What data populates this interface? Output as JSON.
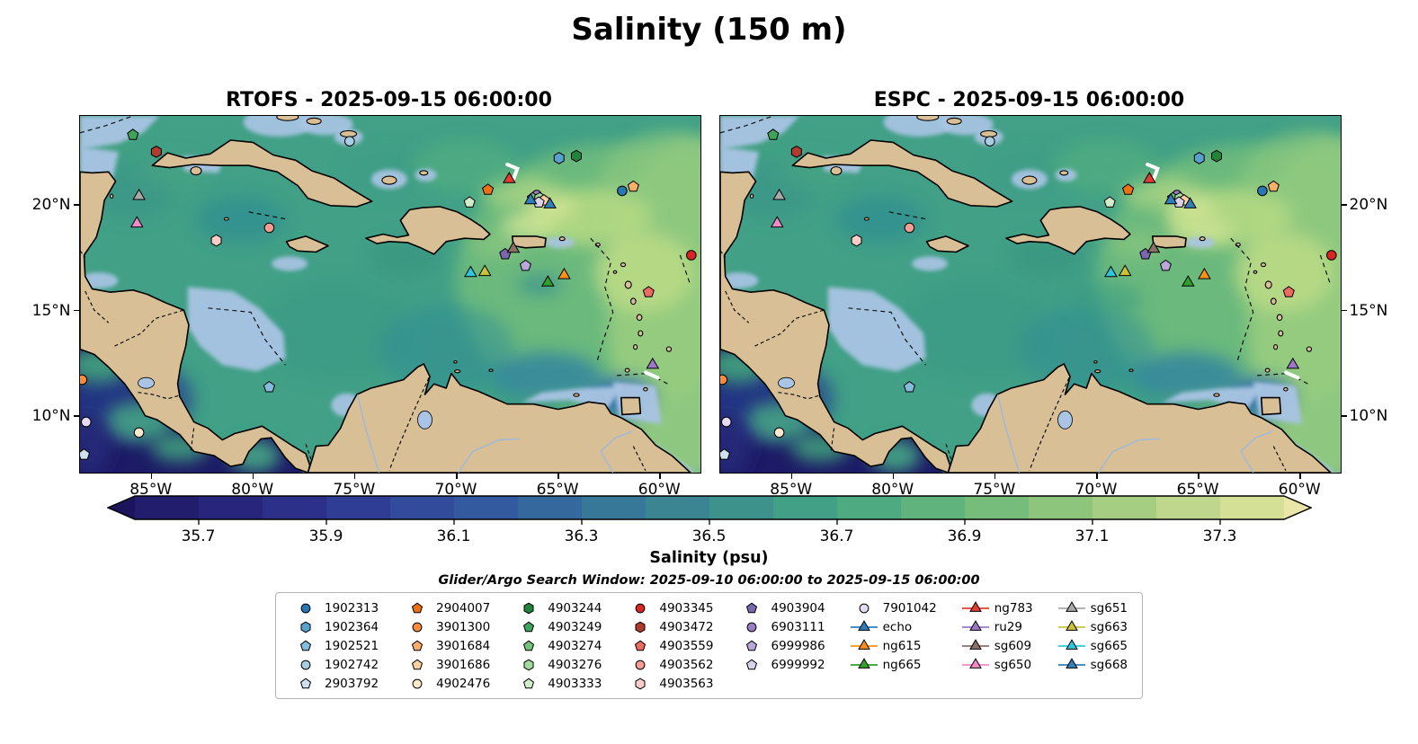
{
  "title": "Salinity (150 m)",
  "map_colors": {
    "land": "#d8bf96",
    "coastline": "#000000",
    "shallow": "#a9c4e4",
    "pacific_deep": "#1d1b66",
    "ocean_base": "#41a086",
    "river": "#9db8dd"
  },
  "chart_data": {
    "type": "heatmap",
    "subtype": "two-panel geographic salinity field at 150 m over the Caribbean Sea with Argo float and glider positions",
    "panels": [
      {
        "id": "rtofs",
        "title": "RTOFS - 2025-09-15 06:00:00"
      },
      {
        "id": "espc",
        "title": "ESPC - 2025-09-15 06:00:00"
      }
    ],
    "lon_range": [
      -88.5,
      -58.0
    ],
    "lat_range": [
      7.3,
      24.2
    ],
    "x_ticks": [
      {
        "label": "85°W",
        "lon": -85
      },
      {
        "label": "80°W",
        "lon": -80
      },
      {
        "label": "75°W",
        "lon": -75
      },
      {
        "label": "70°W",
        "lon": -70
      },
      {
        "label": "65°W",
        "lon": -65
      },
      {
        "label": "60°W",
        "lon": -60
      }
    ],
    "y_ticks": [
      {
        "label": "20°N",
        "lat": 20
      },
      {
        "label": "15°N",
        "lat": 15
      },
      {
        "label": "10°N",
        "lat": 10
      }
    ],
    "colorbar": {
      "label": "Salinity (psu)",
      "range": [
        35.6,
        37.4
      ],
      "tick_values": [
        35.7,
        35.9,
        36.1,
        36.3,
        36.5,
        36.7,
        36.9,
        37.1,
        37.3
      ],
      "tick_labels": [
        "35.7",
        "35.9",
        "36.1",
        "36.3",
        "36.5",
        "36.7",
        "36.9",
        "37.1",
        "37.3"
      ],
      "under_color": "#1c155e",
      "over_color": "#e9e6a8",
      "segment_colors": [
        "#231d6e",
        "#28267c",
        "#2c3089",
        "#2f3d94",
        "#324b9b",
        "#33599e",
        "#35689c",
        "#377797",
        "#3a8591",
        "#3d928b",
        "#42a086",
        "#4eaa80",
        "#60b37c",
        "#76bc7b",
        "#8ec57d",
        "#a6ce83",
        "#bed78c",
        "#d5e097"
      ]
    },
    "search_window_label": "Glider/Argo Search Window: 2025-09-10 06:00:00 to 2025-09-15 06:00:00",
    "legend_columns": [
      [
        {
          "id": "1902313",
          "marker": "circle",
          "color": "#2777b4",
          "type": "float"
        },
        {
          "id": "1902364",
          "marker": "hexagon",
          "color": "#58a1cf",
          "type": "float"
        },
        {
          "id": "1902521",
          "marker": "pentagon",
          "color": "#85bcdb",
          "type": "float"
        },
        {
          "id": "1902742",
          "marker": "circle",
          "color": "#a8cee3",
          "type": "float"
        },
        {
          "id": "2903792",
          "marker": "pentagon",
          "color": "#cfe1f0",
          "type": "float"
        }
      ],
      [
        {
          "id": "2904007",
          "marker": "pentagon",
          "color": "#ed7014",
          "type": "float"
        },
        {
          "id": "3901300",
          "marker": "circle",
          "color": "#fd8c3c",
          "type": "float"
        },
        {
          "id": "3901684",
          "marker": "pentagon",
          "color": "#fdae6b",
          "type": "float"
        },
        {
          "id": "3901686",
          "marker": "pentagon",
          "color": "#fdd0a2",
          "type": "float"
        },
        {
          "id": "4902476",
          "marker": "circle",
          "color": "#fde8cf",
          "type": "float"
        }
      ],
      [
        {
          "id": "4903244",
          "marker": "hexagon",
          "color": "#23823b",
          "type": "float"
        },
        {
          "id": "4903249",
          "marker": "pentagon",
          "color": "#3fa35a",
          "type": "float"
        },
        {
          "id": "4903274",
          "marker": "pentagon",
          "color": "#73c378",
          "type": "float"
        },
        {
          "id": "4903276",
          "marker": "hexagon",
          "color": "#a2d99e",
          "type": "float"
        },
        {
          "id": "4903333",
          "marker": "pentagon",
          "color": "#d1ecca",
          "type": "float"
        }
      ],
      [
        {
          "id": "4903345",
          "marker": "circle",
          "color": "#d92523",
          "type": "float"
        },
        {
          "id": "4903472",
          "marker": "hexagon",
          "color": "#b03a2e",
          "type": "float"
        },
        {
          "id": "4903559",
          "marker": "pentagon",
          "color": "#ee6b62",
          "type": "float"
        },
        {
          "id": "4903562",
          "marker": "circle",
          "color": "#f59d94",
          "type": "float"
        },
        {
          "id": "4903563",
          "marker": "hexagon",
          "color": "#fbcdc9",
          "type": "float"
        }
      ],
      [
        {
          "id": "4903904",
          "marker": "pentagon",
          "color": "#7a67af",
          "type": "float"
        },
        {
          "id": "6903111",
          "marker": "circle",
          "color": "#997fc6",
          "type": "float"
        },
        {
          "id": "6999986",
          "marker": "pentagon",
          "color": "#b8a7d8",
          "type": "float"
        },
        {
          "id": "6999992",
          "marker": "pentagon",
          "color": "#d9d2ea",
          "type": "float"
        }
      ],
      [
        {
          "id": "7901042",
          "marker": "circle",
          "color": "#e6daf2",
          "type": "float"
        },
        {
          "id": "echo",
          "marker": "triangle",
          "color": "#2e7ebc",
          "type": "glider"
        },
        {
          "id": "ng615",
          "marker": "triangle",
          "color": "#ff9015",
          "type": "glider"
        },
        {
          "id": "ng665",
          "marker": "triangle",
          "color": "#2fa02c",
          "type": "glider"
        }
      ],
      [
        {
          "id": "ng783",
          "marker": "triangle",
          "color": "#e33b33",
          "type": "glider"
        },
        {
          "id": "ru29",
          "marker": "triangle",
          "color": "#9e77c8",
          "type": "glider"
        },
        {
          "id": "sg609",
          "marker": "triangle",
          "color": "#8a7067",
          "type": "glider"
        },
        {
          "id": "sg650",
          "marker": "triangle",
          "color": "#f08bc7",
          "type": "glider"
        }
      ],
      [
        {
          "id": "sg651",
          "marker": "triangle",
          "color": "#a8a8a8",
          "type": "glider"
        },
        {
          "id": "sg663",
          "marker": "triangle",
          "color": "#ccc23a",
          "type": "glider"
        },
        {
          "id": "sg665",
          "marker": "triangle",
          "color": "#2ec8dc",
          "type": "glider"
        },
        {
          "id": "sg668",
          "marker": "triangle",
          "color": "#357eb8",
          "type": "glider"
        }
      ]
    ],
    "marker_positions": [
      {
        "ref": "4903249",
        "lon": -85.9,
        "lat": 23.3
      },
      {
        "ref": "4903472",
        "lon": -84.75,
        "lat": 22.5
      },
      {
        "ref": "1902742",
        "lon": -75.25,
        "lat": 23.0
      },
      {
        "ref": "1902364",
        "lon": -64.95,
        "lat": 22.2
      },
      {
        "ref": "4903244",
        "lon": -64.1,
        "lat": 22.3
      },
      {
        "ref": "sg651",
        "lon": -85.6,
        "lat": 20.4
      },
      {
        "ref": "sg650",
        "lon": -85.7,
        "lat": 19.1
      },
      {
        "ref": "4903563",
        "lon": -81.8,
        "lat": 18.3
      },
      {
        "ref": "4903562",
        "lon": -79.2,
        "lat": 18.9
      },
      {
        "ref": "2904007",
        "lon": -68.45,
        "lat": 20.7
      },
      {
        "ref": "4903333",
        "lon": -69.35,
        "lat": 20.1
      },
      {
        "ref": "ng783",
        "lon": -67.4,
        "lat": 21.2
      },
      {
        "ref": "6903111",
        "lon": -66.05,
        "lat": 20.45
      },
      {
        "ref": "4903274",
        "lon": -66.25,
        "lat": 20.3
      },
      {
        "ref": "4903276",
        "lon": -65.9,
        "lat": 20.3
      },
      {
        "ref": "3901686",
        "lon": -65.7,
        "lat": 20.2
      },
      {
        "ref": "6999992",
        "lon": -65.95,
        "lat": 20.1
      },
      {
        "ref": "echo",
        "lon": -66.35,
        "lat": 20.2
      },
      {
        "ref": "sg668",
        "lon": -65.4,
        "lat": 20.0
      },
      {
        "ref": "1902313",
        "lon": -61.85,
        "lat": 20.65
      },
      {
        "ref": "3901684",
        "lon": -61.3,
        "lat": 20.85
      },
      {
        "ref": "4903904",
        "lon": -67.6,
        "lat": 17.65
      },
      {
        "ref": "sg609",
        "lon": -67.2,
        "lat": 17.9
      },
      {
        "ref": "6999986",
        "lon": -66.6,
        "lat": 17.1
      },
      {
        "ref": "sg665",
        "lon": -69.3,
        "lat": 16.75
      },
      {
        "ref": "sg663",
        "lon": -68.6,
        "lat": 16.8
      },
      {
        "ref": "ng665",
        "lon": -65.5,
        "lat": 16.3
      },
      {
        "ref": "ng615",
        "lon": -64.7,
        "lat": 16.65
      },
      {
        "ref": "4903559",
        "lon": -60.55,
        "lat": 15.85
      },
      {
        "ref": "4903345",
        "lon": -58.45,
        "lat": 17.6
      },
      {
        "ref": "ru29",
        "lon": -60.35,
        "lat": 12.4
      },
      {
        "ref": "1902521",
        "lon": -79.2,
        "lat": 11.35
      },
      {
        "ref": "3901300",
        "lon": -88.4,
        "lat": 11.7
      },
      {
        "ref": "7901042",
        "lon": -88.2,
        "lat": 9.7
      },
      {
        "ref": "4902476",
        "lon": -85.6,
        "lat": 9.2
      },
      {
        "ref": "2903792",
        "lon": -88.3,
        "lat": 8.15
      }
    ]
  }
}
